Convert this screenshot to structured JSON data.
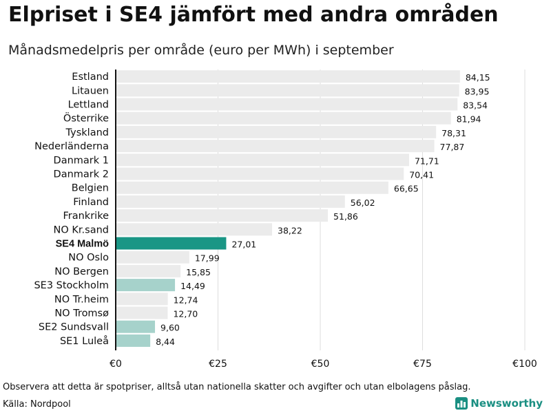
{
  "title": "Elpriset i SE4 jämfört med andra områden",
  "subtitle": "Månadsmedelpris per område (euro per MWh) i september",
  "note": "Observera att detta är spotpriser, alltså utan nationella skatter och avgifter och utan elbolagens påslag.",
  "source": "Källa: Nordpool",
  "brand": {
    "name": "Newsworthy",
    "icon": "newsworthy-logo-icon",
    "color": "#1a8f82"
  },
  "colors": {
    "default": "#ebebeb",
    "highlight": "#1a9685",
    "swedish": "#a6d2cb",
    "grid": "#dddddd",
    "axis": "#111111"
  },
  "chart_data": {
    "type": "bar",
    "orientation": "horizontal",
    "categories": [
      "Estland",
      "Litauen",
      "Lettland",
      "Österrike",
      "Tyskland",
      "Nederländerna",
      "Danmark 1",
      "Danmark 2",
      "Belgien",
      "Finland",
      "Frankrike",
      "NO Kr.sand",
      "SE4 Malmö",
      "NO Oslo",
      "NO Bergen",
      "SE3 Stockholm",
      "NO Tr.heim",
      "NO Tromsø",
      "SE2 Sundsvall",
      "SE1 Luleå"
    ],
    "values": [
      84.15,
      83.95,
      83.54,
      81.94,
      78.31,
      77.87,
      71.71,
      70.41,
      66.65,
      56.02,
      51.86,
      38.22,
      27.01,
      17.99,
      15.85,
      14.49,
      12.74,
      12.7,
      9.6,
      8.44
    ],
    "value_labels": [
      "84,15",
      "83,95",
      "83,54",
      "81,94",
      "78,31",
      "77,87",
      "71,71",
      "70,41",
      "66,65",
      "56,02",
      "51,86",
      "38,22",
      "27,01",
      "17,99",
      "15,85",
      "14,49",
      "12,74",
      "12,70",
      "9,60",
      "8,44"
    ],
    "bar_styles": [
      "default",
      "default",
      "default",
      "default",
      "default",
      "default",
      "default",
      "default",
      "default",
      "default",
      "default",
      "default",
      "highlight",
      "default",
      "default",
      "swedish",
      "default",
      "default",
      "swedish",
      "swedish"
    ],
    "highlighted_category": "SE4 Malmö",
    "x_ticks": [
      0,
      25,
      50,
      75,
      100
    ],
    "x_tick_labels": [
      "€0",
      "€25",
      "€50",
      "€75",
      "€100"
    ],
    "xlim": [
      0,
      100
    ],
    "grid": true,
    "legend": "none"
  }
}
